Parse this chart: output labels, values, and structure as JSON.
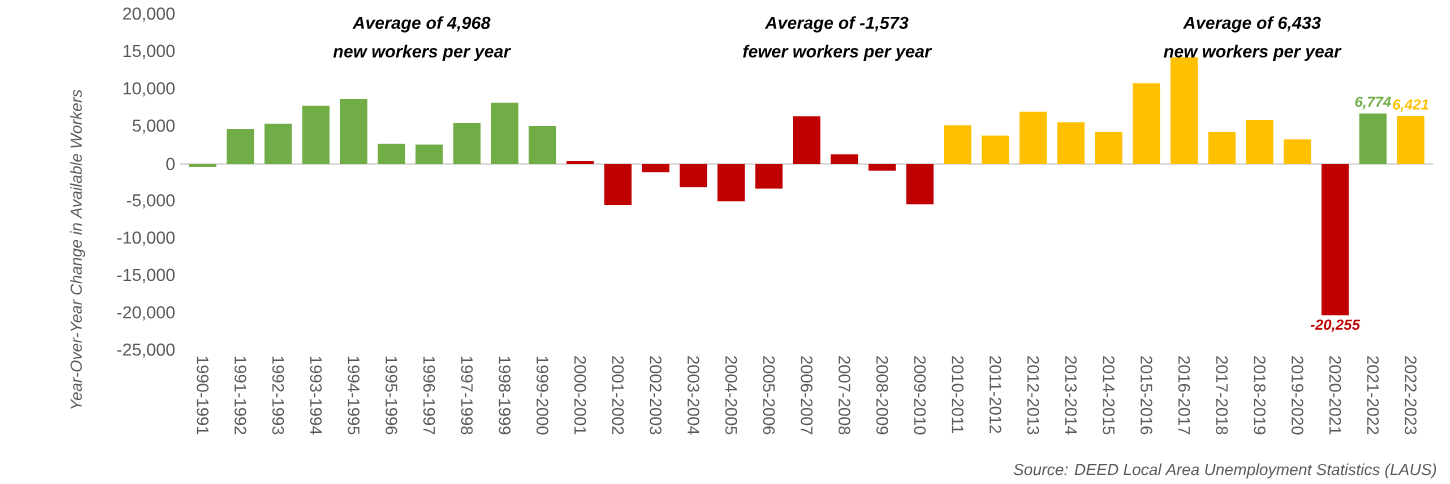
{
  "chart_data": {
    "type": "bar",
    "ylabel": "Year-Over-Year Change in Available Workers",
    "categories": [
      "1990-1991",
      "1991-1992",
      "1992-1993",
      "1993-1994",
      "1994-1995",
      "1995-1996",
      "1996-1997",
      "1997-1998",
      "1998-1999",
      "1999-2000",
      "2000-2001",
      "2001-2002",
      "2002-2003",
      "2003-2004",
      "2004-2005",
      "2005-2006",
      "2006-2007",
      "2007-2008",
      "2008-2009",
      "2009-2010",
      "2010-2011",
      "2011-2012",
      "2012-2013",
      "2013-2014",
      "2014-2015",
      "2015-2016",
      "2016-2017",
      "2017-2018",
      "2018-2019",
      "2019-2020",
      "2020-2021",
      "2021-2022",
      "2022-2023"
    ],
    "values": [
      -400,
      4700,
      5400,
      7800,
      8700,
      2700,
      2600,
      5500,
      8200,
      5100,
      400,
      -5500,
      -1100,
      -3100,
      -5000,
      -3300,
      6400,
      1300,
      -900,
      -5400,
      5200,
      3800,
      7000,
      5600,
      4300,
      10800,
      14300,
      4300,
      5900,
      3300,
      -20255,
      6774,
      6421
    ],
    "colors": [
      "#70ad47",
      "#70ad47",
      "#70ad47",
      "#70ad47",
      "#70ad47",
      "#70ad47",
      "#70ad47",
      "#70ad47",
      "#70ad47",
      "#70ad47",
      "#c00000",
      "#c00000",
      "#c00000",
      "#c00000",
      "#c00000",
      "#c00000",
      "#c00000",
      "#c00000",
      "#c00000",
      "#c00000",
      "#ffc000",
      "#ffc000",
      "#ffc000",
      "#ffc000",
      "#ffc000",
      "#ffc000",
      "#ffc000",
      "#ffc000",
      "#ffc000",
      "#ffc000",
      "#c00000",
      "#70ad47",
      "#ffc000"
    ],
    "value_labels": [
      null,
      null,
      null,
      null,
      null,
      null,
      null,
      null,
      null,
      null,
      null,
      null,
      null,
      null,
      null,
      null,
      null,
      null,
      null,
      null,
      null,
      null,
      null,
      null,
      null,
      null,
      null,
      null,
      null,
      null,
      "-20,255",
      "6,774",
      "6,421"
    ],
    "ylim": [
      -25000,
      20000
    ],
    "yticks": [
      {
        "value": -25000,
        "label": "-25,000"
      },
      {
        "value": -20000,
        "label": "-20,000"
      },
      {
        "value": -15000,
        "label": "-15,000"
      },
      {
        "value": -10000,
        "label": "-10,000"
      },
      {
        "value": -5000,
        "label": "-5,000"
      },
      0,
      {
        "value": 5000,
        "label": "5,000"
      },
      {
        "value": 10000,
        "label": "10,000"
      },
      {
        "value": 15000,
        "label": "15,000"
      },
      {
        "value": 20000,
        "label": "20,000"
      }
    ],
    "annotations": [
      "Average of 4,968",
      "new workers per year",
      "Average of -1,573",
      "fewer workers per year",
      "Average of 6,433",
      "new workers per year",
      "Source: DEED Local Area Unemployment Statistics (LAUS)"
    ]
  }
}
